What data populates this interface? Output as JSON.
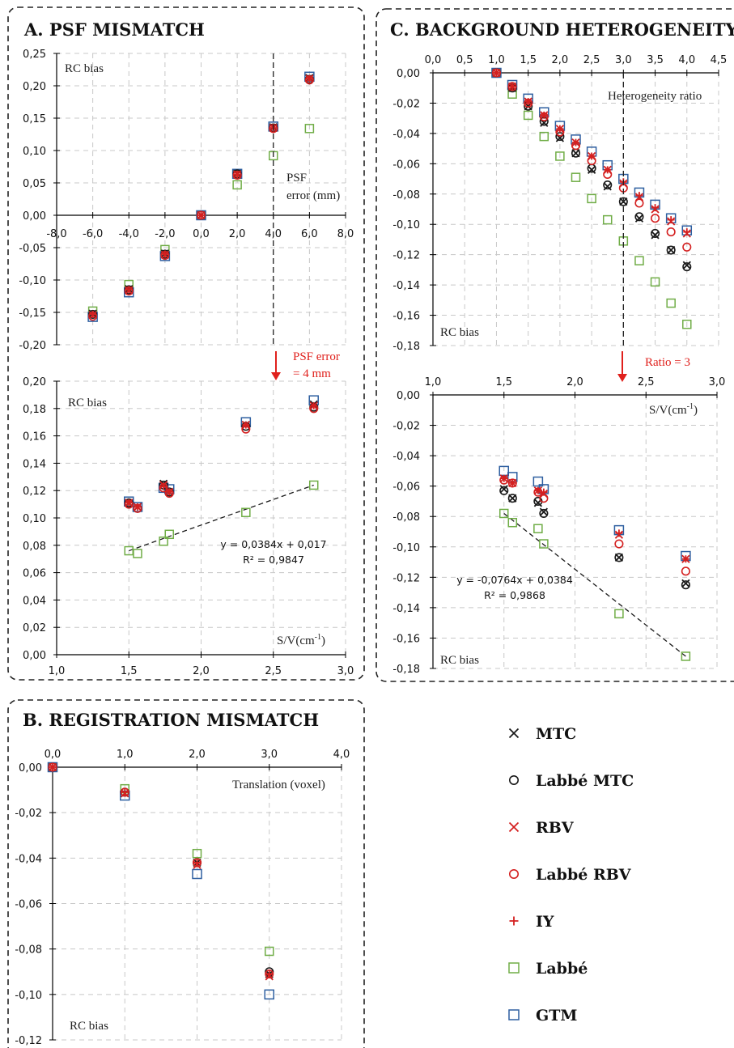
{
  "titles": {
    "a": "A. PSF  MISMATCH",
    "b": "B. REGISTRATION  MISMATCH",
    "c": "C. BACKGROUND HETEROGENEITY"
  },
  "colors": {
    "MTC": "#1a1a1a",
    "Labbe_MTC": "#1a1a1a",
    "RBV": "#d42020",
    "Labbe_RBV": "#d42020",
    "IY": "#d42020",
    "Labbe": "#70ad47",
    "GTM": "#2e5fa0",
    "annotation_red": "#e0201c"
  },
  "legend": [
    {
      "key": "MTC",
      "label": "MTC",
      "marker": "x-cross"
    },
    {
      "key": "Labbe_MTC",
      "label": "Labbé MTC",
      "marker": "circle"
    },
    {
      "key": "RBV",
      "label": "RBV",
      "marker": "x-cross"
    },
    {
      "key": "Labbe_RBV",
      "label": "Labbé RBV",
      "marker": "circle"
    },
    {
      "key": "IY",
      "label": "IY",
      "marker": "plus"
    },
    {
      "key": "Labbe",
      "label": "Labbé",
      "marker": "square"
    },
    {
      "key": "GTM",
      "label": "GTM",
      "marker": "square"
    }
  ],
  "annotations": {
    "psf_error": "PSF error",
    "psf_value": "= 4 mm",
    "ratio": "Ratio = 3"
  },
  "chart_data": [
    {
      "id": "A_top",
      "type": "scatter",
      "xlabel_line1": "PSF",
      "xlabel_line2": "error (mm)",
      "ylabel": "RC bias",
      "xlim": [
        -8,
        8
      ],
      "ylim": [
        -0.2,
        0.25
      ],
      "grid": true,
      "xticks": [
        "-8,0",
        "-6,0",
        "-4,0",
        "-2,0",
        "0,0",
        "2,0",
        "4,0",
        "6,0",
        "8,0"
      ],
      "yticks": [
        "-0,20",
        "-0,15",
        "-0,10",
        "-0,05",
        "0,00",
        "0,05",
        "0,10",
        "0,15",
        "0,20",
        "0,25"
      ],
      "x": [
        -6,
        -4,
        -2,
        0,
        2,
        4,
        6
      ],
      "series": [
        {
          "key": "MTC",
          "values": [
            -0.152,
            -0.114,
            -0.059,
            0,
            0.064,
            0.136,
            0.212
          ]
        },
        {
          "key": "Labbe_MTC",
          "values": [
            -0.153,
            -0.115,
            -0.06,
            0,
            0.064,
            0.135,
            0.21
          ]
        },
        {
          "key": "RBV",
          "values": [
            -0.154,
            -0.116,
            -0.061,
            0,
            0.063,
            0.135,
            0.211
          ]
        },
        {
          "key": "Labbe_RBV",
          "values": [
            -0.156,
            -0.117,
            -0.062,
            0,
            0.062,
            0.134,
            0.209
          ]
        },
        {
          "key": "IY",
          "values": [
            -0.153,
            -0.115,
            -0.06,
            0,
            0.063,
            0.135,
            0.211
          ]
        },
        {
          "key": "Labbe",
          "values": [
            -0.148,
            -0.107,
            -0.053,
            0,
            0.047,
            0.092,
            0.134
          ]
        },
        {
          "key": "GTM",
          "values": [
            -0.157,
            -0.119,
            -0.063,
            0,
            0.064,
            0.137,
            0.214
          ]
        }
      ]
    },
    {
      "id": "A_bottom",
      "type": "scatter",
      "xlabel": "S/V(cm⁻¹)",
      "ylabel": "RC bias",
      "xlim": [
        1.0,
        3.0
      ],
      "ylim": [
        0,
        0.2
      ],
      "grid": true,
      "xticks": [
        "1,0",
        "1,5",
        "2,0",
        "2,5",
        "3,0"
      ],
      "yticks": [
        "0,00",
        "0,02",
        "0,04",
        "0,06",
        "0,08",
        "0,10",
        "0,12",
        "0,14",
        "0,16",
        "0,18",
        "0,20"
      ],
      "x": [
        1.5,
        1.56,
        1.74,
        1.78,
        2.31,
        2.78
      ],
      "series": [
        {
          "key": "MTC",
          "values": [
            0.111,
            0.108,
            0.125,
            0.119,
            0.168,
            0.183
          ]
        },
        {
          "key": "Labbe_MTC",
          "values": [
            0.111,
            0.107,
            0.124,
            0.119,
            0.167,
            0.181
          ]
        },
        {
          "key": "RBV",
          "values": [
            0.111,
            0.108,
            0.124,
            0.119,
            0.168,
            0.182
          ]
        },
        {
          "key": "Labbe_RBV",
          "values": [
            0.11,
            0.107,
            0.122,
            0.118,
            0.165,
            0.18
          ]
        },
        {
          "key": "IY",
          "values": [
            0.111,
            0.108,
            0.123,
            0.119,
            0.168,
            0.182
          ]
        },
        {
          "key": "GTM",
          "values": [
            0.112,
            0.108,
            0.122,
            0.121,
            0.17,
            0.186
          ]
        }
      ],
      "labbe": {
        "x": [
          1.5,
          1.56,
          1.74,
          1.78,
          2.31,
          2.78
        ],
        "values": [
          0.076,
          0.074,
          0.083,
          0.088,
          0.104,
          0.124
        ]
      },
      "trendline": {
        "slope": 0.0384,
        "intercept": 0.017,
        "x": [
          1.5,
          2.78
        ],
        "equation": "y = 0,0384x + 0,017",
        "r2": "R² = 0,9847"
      }
    },
    {
      "id": "B",
      "type": "scatter",
      "xlabel": "Translation (voxel)",
      "ylabel": "RC bias",
      "xlim": [
        0,
        4
      ],
      "ylim": [
        -0.12,
        0
      ],
      "grid": true,
      "xticks": [
        "0,0",
        "1,0",
        "2,0",
        "3,0",
        "4,0"
      ],
      "yticks": [
        "-0,12",
        "-0,10",
        "-0,08",
        "-0,06",
        "-0,04",
        "-0,02",
        "0,00"
      ],
      "x": [
        0,
        1,
        2,
        3
      ],
      "series": [
        {
          "key": "MTC",
          "values": [
            0,
            -0.0115,
            -0.042,
            -0.091
          ]
        },
        {
          "key": "Labbe_MTC",
          "values": [
            0,
            -0.011,
            -0.042,
            -0.09
          ]
        },
        {
          "key": "RBV",
          "values": [
            0,
            -0.0115,
            -0.043,
            -0.092
          ]
        },
        {
          "key": "Labbe_RBV",
          "values": [
            0,
            -0.011,
            -0.042,
            -0.091
          ]
        },
        {
          "key": "IY",
          "values": [
            0,
            -0.011,
            -0.042,
            -0.091
          ]
        },
        {
          "key": "Labbe",
          "values": [
            0,
            -0.0095,
            -0.038,
            -0.081
          ]
        },
        {
          "key": "GTM",
          "values": [
            0,
            -0.0125,
            -0.047,
            -0.1
          ]
        }
      ]
    },
    {
      "id": "C_top",
      "type": "scatter",
      "xlabel": "Heterogeneity ratio",
      "ylabel": "RC bias",
      "xlim": [
        0,
        4.5
      ],
      "ylim": [
        -0.18,
        0
      ],
      "grid": true,
      "xticks": [
        "0,0",
        "0,5",
        "1,0",
        "1,5",
        "2,0",
        "2,5",
        "3,0",
        "3,5",
        "4,0",
        "4,5"
      ],
      "yticks": [
        "-0,18",
        "-0,16",
        "-0,14",
        "-0,12",
        "-0,10",
        "-0,08",
        "-0,06",
        "-0,04",
        "-0,02",
        "0,00"
      ],
      "x": [
        1.0,
        1.25,
        1.5,
        1.75,
        2.0,
        2.25,
        2.5,
        2.75,
        3.0,
        3.25,
        3.5,
        3.75,
        4.0
      ],
      "series": [
        {
          "key": "MTC",
          "values": [
            0,
            -0.01,
            -0.022,
            -0.033,
            -0.043,
            -0.053,
            -0.064,
            -0.075,
            -0.085,
            -0.096,
            -0.107,
            -0.117,
            -0.127
          ]
        },
        {
          "key": "Labbe_MTC",
          "values": [
            0,
            -0.01,
            -0.022,
            -0.032,
            -0.042,
            -0.053,
            -0.063,
            -0.074,
            -0.085,
            -0.095,
            -0.106,
            -0.117,
            -0.128
          ]
        },
        {
          "key": "RBV",
          "values": [
            0,
            -0.009,
            -0.019,
            -0.028,
            -0.037,
            -0.046,
            -0.055,
            -0.064,
            -0.073,
            -0.082,
            -0.09,
            -0.098,
            -0.106
          ]
        },
        {
          "key": "Labbe_RBV",
          "values": [
            0,
            -0.009,
            -0.02,
            -0.029,
            -0.039,
            -0.048,
            -0.058,
            -0.067,
            -0.076,
            -0.086,
            -0.096,
            -0.105,
            -0.115
          ]
        },
        {
          "key": "IY",
          "values": [
            0,
            -0.009,
            -0.019,
            -0.028,
            -0.037,
            -0.046,
            -0.055,
            -0.064,
            -0.072,
            -0.081,
            -0.089,
            -0.097,
            -0.105
          ]
        },
        {
          "key": "Labbe",
          "values": [
            0,
            -0.014,
            -0.028,
            -0.042,
            -0.055,
            -0.069,
            -0.083,
            -0.097,
            -0.111,
            -0.124,
            -0.138,
            -0.152,
            -0.166
          ]
        },
        {
          "key": "GTM",
          "values": [
            0,
            -0.008,
            -0.017,
            -0.026,
            -0.035,
            -0.044,
            -0.052,
            -0.061,
            -0.07,
            -0.079,
            -0.087,
            -0.096,
            -0.104
          ]
        }
      ]
    },
    {
      "id": "C_bottom",
      "type": "scatter",
      "xlabel": "S/V(cm⁻¹)",
      "ylabel": "RC bias",
      "xlim": [
        1.0,
        3.0
      ],
      "ylim": [
        -0.18,
        0
      ],
      "grid": true,
      "xticks": [
        "1,0",
        "1,5",
        "2,0",
        "2,5",
        "3,0"
      ],
      "yticks": [
        "-0,18",
        "-0,16",
        "-0,14",
        "-0,12",
        "-0,10",
        "-0,08",
        "-0,06",
        "-0,04",
        "-0,02",
        "0,00"
      ],
      "x": [
        1.5,
        1.56,
        1.74,
        1.78,
        2.31,
        2.78
      ],
      "series": [
        {
          "key": "MTC",
          "values": [
            -0.062,
            -0.068,
            -0.071,
            -0.077,
            -0.107,
            -0.124
          ]
        },
        {
          "key": "Labbe_MTC",
          "values": [
            -0.063,
            -0.068,
            -0.07,
            -0.078,
            -0.107,
            -0.125
          ]
        },
        {
          "key": "RBV",
          "values": [
            -0.055,
            -0.058,
            -0.063,
            -0.065,
            -0.092,
            -0.108
          ]
        },
        {
          "key": "Labbe_RBV",
          "values": [
            -0.056,
            -0.058,
            -0.064,
            -0.068,
            -0.098,
            -0.116
          ]
        },
        {
          "key": "IY",
          "values": [
            -0.055,
            -0.058,
            -0.063,
            -0.064,
            -0.091,
            -0.108
          ]
        },
        {
          "key": "GTM",
          "values": [
            -0.05,
            -0.054,
            -0.057,
            -0.062,
            -0.089,
            -0.106
          ]
        }
      ],
      "labbe": {
        "x": [
          1.5,
          1.56,
          1.74,
          1.78,
          2.31,
          2.78
        ],
        "values": [
          -0.078,
          -0.084,
          -0.088,
          -0.098,
          -0.144,
          -0.172
        ]
      },
      "trendline": {
        "slope": -0.0764,
        "intercept": 0.0384,
        "x": [
          1.5,
          2.78
        ],
        "equation": "y = -0,0764x + 0,0384",
        "r2": "R² = 0,9868"
      }
    }
  ]
}
